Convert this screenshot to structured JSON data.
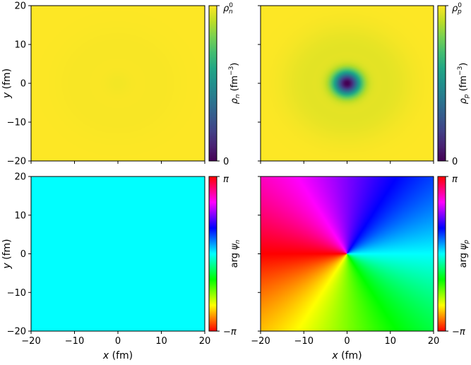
{
  "chart_data": [
    {
      "type": "heatmap",
      "panel": "top-left",
      "quantity": "neutron density",
      "colormap": "viridis",
      "xlim": [
        -20,
        20
      ],
      "ylim": [
        -20,
        20
      ],
      "xticks": [],
      "yticks": [
        "20",
        "10",
        "0",
        "−10",
        "−20"
      ],
      "xlabel": "",
      "ylabel": "y (fm)",
      "ylabel_italic": "y",
      "ylabel_unit": " (fm)",
      "field": {
        "kind": "radial_density",
        "center": [
          0,
          0
        ],
        "floor": 0.985,
        "core_width_fm": 3.0
      },
      "colorbar": {
        "label": "ρn (fm⁻³)",
        "label_sym": "ρ",
        "label_sub": "n",
        "label_unit": " (fm",
        "label_sup": "−3",
        "label_close": ")",
        "top": "ρ⁰n",
        "top_sym": "ρ",
        "top_sup": "0",
        "top_sub": "n",
        "bottom": "0"
      }
    },
    {
      "type": "heatmap",
      "panel": "top-right",
      "quantity": "proton density",
      "colormap": "viridis",
      "xlim": [
        -20,
        20
      ],
      "ylim": [
        -20,
        20
      ],
      "xticks": [],
      "yticks": [],
      "xlabel": "",
      "ylabel": "",
      "field": {
        "kind": "radial_density",
        "center": [
          0,
          0
        ],
        "floor": 0.0,
        "core_width_fm": 3.0
      },
      "colorbar": {
        "label": "ρp (fm⁻³)",
        "label_sym": "ρ",
        "label_sub": "p",
        "label_unit": " (fm",
        "label_sup": "−3",
        "label_close": ")",
        "top": "ρ⁰p",
        "top_sym": "ρ",
        "top_sup": "0",
        "top_sub": "p",
        "bottom": "0"
      }
    },
    {
      "type": "heatmap",
      "panel": "bottom-left",
      "quantity": "neutron phase",
      "colormap": "hsv",
      "xlim": [
        -20,
        20
      ],
      "ylim": [
        -20,
        20
      ],
      "xticks": [
        "−20",
        "−10",
        "0",
        "10",
        "20"
      ],
      "yticks": [
        "20",
        "10",
        "0",
        "−10",
        "−20"
      ],
      "xlabel": "x (fm)",
      "ylabel": "y (fm)",
      "xlabel_italic": "x",
      "xlabel_unit": " (fm)",
      "ylabel_italic": "y",
      "ylabel_unit": " (fm)",
      "field": {
        "kind": "uniform_phase",
        "value_rad": 0.0
      },
      "colorbar": {
        "label": "arg ψn",
        "label_pre": "arg ",
        "label_sym": "ψ",
        "label_sub": "n",
        "top": "π",
        "bottom": "−π"
      }
    },
    {
      "type": "heatmap",
      "panel": "bottom-right",
      "quantity": "proton phase",
      "colormap": "hsv",
      "xlim": [
        -20,
        20
      ],
      "ylim": [
        -20,
        20
      ],
      "xticks": [
        "−20",
        "−10",
        "0",
        "10",
        "20"
      ],
      "yticks": [],
      "xlabel": "x (fm)",
      "ylabel": "",
      "xlabel_italic": "x",
      "xlabel_unit": " (fm)",
      "field": {
        "kind": "vortex_phase",
        "center": [
          0,
          0
        ],
        "winding": 1
      },
      "colorbar": {
        "label": "arg ψp",
        "label_pre": "arg ",
        "label_sym": "ψ",
        "label_sub": "p",
        "top": "π",
        "bottom": "−π"
      }
    }
  ]
}
